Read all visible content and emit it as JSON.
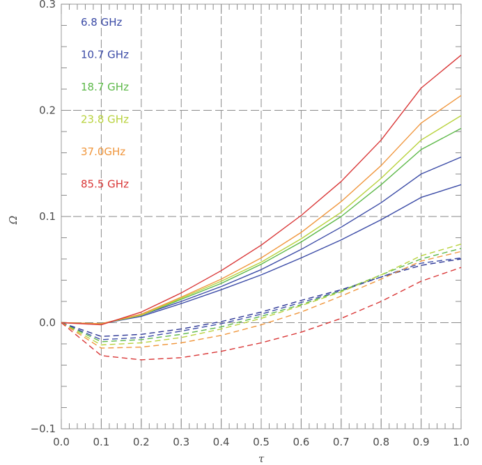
{
  "chart_data": {
    "type": "line",
    "xlabel": "τ",
    "ylabel": "Ω",
    "xlim": [
      0.0,
      1.0
    ],
    "ylim": [
      -0.1,
      0.3
    ],
    "xticks": [
      0.0,
      0.1,
      0.2,
      0.3,
      0.4,
      0.5,
      0.6,
      0.7,
      0.8,
      0.9,
      1.0
    ],
    "xtick_labels": [
      "0.0",
      "0.1",
      "0.2",
      "0.3",
      "0.4",
      "0.5",
      "0.6",
      "0.7",
      "0.8",
      "0.9",
      "1.0"
    ],
    "yticks": [
      -0.1,
      0.0,
      0.1,
      0.2,
      0.3
    ],
    "ytick_labels": [
      "−0.1",
      "0.0",
      "0.1",
      "0.2",
      "0.3"
    ],
    "grid": true,
    "legend_placement": "top-left",
    "x": [
      0.0,
      0.1,
      0.2,
      0.3,
      0.4,
      0.5,
      0.6,
      0.7,
      0.8,
      0.9,
      1.0
    ],
    "series": [
      {
        "name": "6.8 GHz",
        "color": "#3a4aa6",
        "style": "solid",
        "values": [
          0.0,
          -0.001,
          0.006,
          0.018,
          0.031,
          0.045,
          0.061,
          0.078,
          0.097,
          0.118,
          0.13
        ]
      },
      {
        "name": "10.7 GHz",
        "color": "#3a4aa6",
        "style": "solid",
        "values": [
          0.0,
          -0.001,
          0.007,
          0.02,
          0.034,
          0.05,
          0.069,
          0.09,
          0.113,
          0.14,
          0.156
        ]
      },
      {
        "name": "18.7 GHz",
        "color": "#5cb848",
        "style": "solid",
        "values": [
          0.0,
          -0.001,
          0.007,
          0.022,
          0.037,
          0.055,
          0.076,
          0.1,
          0.13,
          0.163,
          0.183
        ]
      },
      {
        "name": "23.8 GHz",
        "color": "#b8d23c",
        "style": "solid",
        "values": [
          0.0,
          -0.001,
          0.007,
          0.023,
          0.039,
          0.057,
          0.079,
          0.104,
          0.136,
          0.172,
          0.195
        ]
      },
      {
        "name": "37.0GHz",
        "color": "#f0963c",
        "style": "solid",
        "values": [
          0.0,
          -0.001,
          0.008,
          0.024,
          0.041,
          0.061,
          0.085,
          0.114,
          0.148,
          0.188,
          0.214
        ]
      },
      {
        "name": "85.5 GHz",
        "color": "#d93636",
        "style": "solid",
        "values": [
          0.0,
          -0.002,
          0.01,
          0.028,
          0.049,
          0.073,
          0.101,
          0.133,
          0.172,
          0.221,
          0.252
        ]
      },
      {
        "name": "6.8 GHz",
        "color": "#2a3494",
        "style": "dashed",
        "values": [
          0.0,
          -0.013,
          -0.011,
          -0.006,
          0.001,
          0.01,
          0.021,
          0.031,
          0.043,
          0.054,
          0.06
        ]
      },
      {
        "name": "10.7 GHz",
        "color": "#3a4aa6",
        "style": "dashed",
        "values": [
          0.0,
          -0.016,
          -0.014,
          -0.008,
          -0.001,
          0.008,
          0.019,
          0.03,
          0.043,
          0.056,
          0.061
        ]
      },
      {
        "name": "18.7 GHz",
        "color": "#5cb848",
        "style": "dashed",
        "values": [
          0.0,
          -0.018,
          -0.016,
          -0.011,
          -0.004,
          0.006,
          0.017,
          0.03,
          0.045,
          0.06,
          0.07
        ]
      },
      {
        "name": "23.8 GHz",
        "color": "#b8d23c",
        "style": "dashed",
        "values": [
          0.0,
          -0.021,
          -0.019,
          -0.014,
          -0.006,
          0.004,
          0.016,
          0.029,
          0.045,
          0.063,
          0.074
        ]
      },
      {
        "name": "37.0GHz",
        "color": "#f0963c",
        "style": "dashed",
        "values": [
          0.0,
          -0.024,
          -0.023,
          -0.019,
          -0.012,
          -0.002,
          0.01,
          0.025,
          0.041,
          0.058,
          0.067
        ]
      },
      {
        "name": "85.5 GHz",
        "color": "#d93636",
        "style": "dashed",
        "values": [
          0.0,
          -0.031,
          -0.035,
          -0.033,
          -0.027,
          -0.019,
          -0.009,
          0.004,
          0.02,
          0.039,
          0.052
        ]
      }
    ],
    "legend": [
      {
        "label": "6.8 GHz",
        "color": "#3a4aa6"
      },
      {
        "label": "10.7 GHz",
        "color": "#3a4aa6"
      },
      {
        "label": "18.7 GHz",
        "color": "#5cb848"
      },
      {
        "label": "23.8 GHz",
        "color": "#b8d23c"
      },
      {
        "label": "37.0GHz",
        "color": "#f0963c"
      },
      {
        "label": "85.5 GHz",
        "color": "#d93636"
      }
    ]
  }
}
